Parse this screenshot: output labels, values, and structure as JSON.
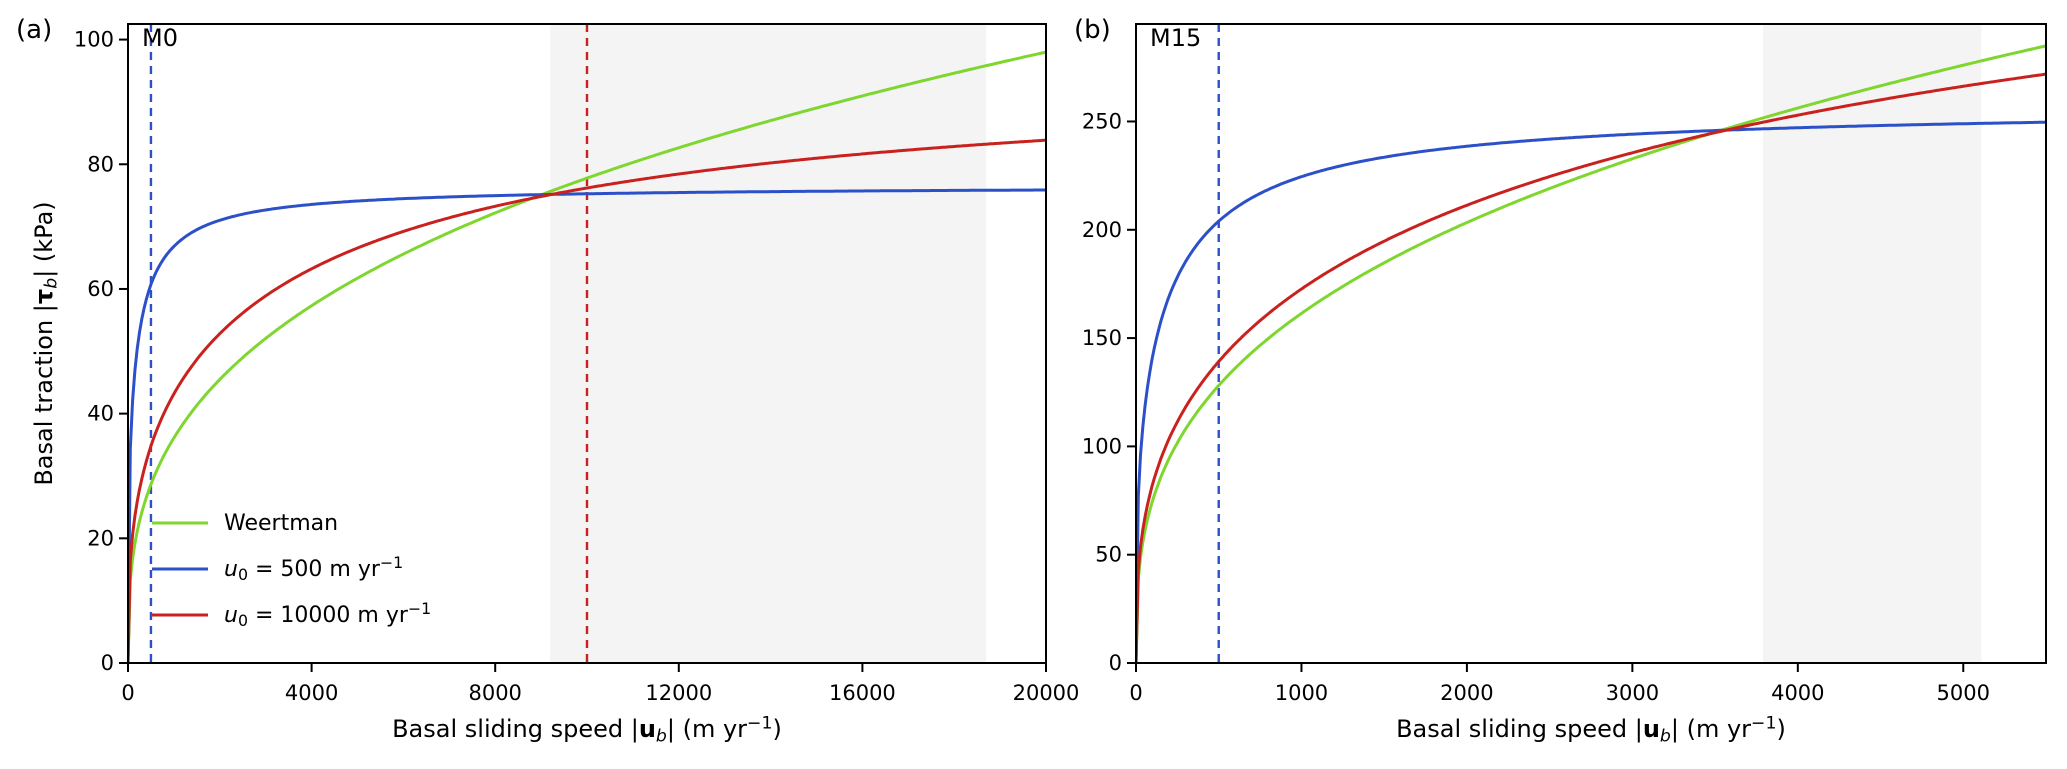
{
  "figure": {
    "background": "#ffffff",
    "description_labels": {
      "panel_a_letter": "(a)",
      "panel_a_tag": "M0",
      "panel_b_letter": "(b)",
      "panel_b_tag": "M15"
    }
  },
  "chart_data": [
    {
      "id": "a",
      "type": "line",
      "panel_letter": "(a)",
      "panel_tag": "M0",
      "xlabel": "Basal sliding speed |ub| (m yr−1)",
      "ylabel": "Basal traction |τb| (kPa)",
      "xlim": [
        0,
        20000
      ],
      "ylim": [
        0,
        102.5
      ],
      "xticks": [
        0,
        4000,
        8000,
        12000,
        16000,
        20000
      ],
      "yticks": [
        0,
        20,
        40,
        60,
        80,
        100
      ],
      "grid": false,
      "shaded_span": [
        9200,
        18700
      ],
      "shaded_color": "#f4f4f4",
      "vlines": [
        {
          "x": 500,
          "color": "#2c50c8",
          "style": "dashed"
        },
        {
          "x": 10000,
          "color": "#c9211e",
          "style": "dashed"
        }
      ],
      "xlabel_segments": [
        {
          "t": "Basal sliding speed |"
        },
        {
          "t": "u",
          "style": "bold"
        },
        {
          "t": "b",
          "style": "italic",
          "script": "sub"
        },
        {
          "t": "| (m yr"
        },
        {
          "t": "−1",
          "script": "sup"
        },
        {
          "t": ")"
        }
      ],
      "ylabel_segments": [
        {
          "t": "Basal traction |"
        },
        {
          "t": "τ",
          "style": "bold"
        },
        {
          "t": "b",
          "style": "italic",
          "script": "sub"
        },
        {
          "t": "| (kPa)"
        }
      ],
      "series": [
        {
          "key": "weertman",
          "name": "Weertman",
          "color": "#7ed62f",
          "law": "weertman",
          "C": 3.61,
          "m": 3,
          "points": [
            [
              0,
              0
            ],
            [
              500,
              28.7
            ],
            [
              1000,
              36.1
            ],
            [
              2000,
              45.5
            ],
            [
              4000,
              57.3
            ],
            [
              6000,
              65.6
            ],
            [
              8000,
              72.2
            ],
            [
              10000,
              77.8
            ],
            [
              12000,
              82.6
            ],
            [
              14000,
              87.0
            ],
            [
              16000,
              91.0
            ],
            [
              18000,
              94.6
            ],
            [
              20000,
              98.0
            ]
          ]
        },
        {
          "key": "u0-500",
          "name": "u0 =  500 m yr−1",
          "color": "#2c50c8",
          "law": "regularized-coulomb",
          "tau_c": 76.5,
          "u0": 500,
          "m": 3,
          "points": [
            [
              0,
              0
            ],
            [
              100,
              42.1
            ],
            [
              250,
              53.0
            ],
            [
              500,
              60.7
            ],
            [
              1000,
              66.8
            ],
            [
              2000,
              71.0
            ],
            [
              4000,
              73.6
            ],
            [
              8000,
              75.0
            ],
            [
              12000,
              75.5
            ],
            [
              16000,
              75.7
            ],
            [
              20000,
              75.9
            ]
          ]
        },
        {
          "key": "u0-10000",
          "name": "u0 =  10000 m yr−1",
          "color": "#c9211e",
          "law": "regularized-coulomb",
          "tau_c": 96.0,
          "u0": 10000,
          "m": 3,
          "points": [
            [
              0,
              0
            ],
            [
              500,
              34.8
            ],
            [
              1000,
              43.2
            ],
            [
              2000,
              52.8
            ],
            [
              4000,
              63.2
            ],
            [
              6000,
              69.2
            ],
            [
              8000,
              73.3
            ],
            [
              10000,
              76.2
            ],
            [
              12000,
              78.4
            ],
            [
              14000,
              80.2
            ],
            [
              16000,
              81.7
            ],
            [
              18000,
              82.9
            ],
            [
              20000,
              83.9
            ]
          ]
        }
      ],
      "legend": {
        "visible": true,
        "position": "lower left",
        "frame": false,
        "entries": [
          {
            "color": "#7ed62f",
            "label": "Weertman",
            "segments": [
              {
                "t": "Weertman"
              }
            ]
          },
          {
            "color": "#2c50c8",
            "label": "u0 =  500 m yr−1",
            "segments": [
              {
                "t": "u",
                "style": "italic"
              },
              {
                "t": "0",
                "script": "sub"
              },
              {
                "t": " =  500 m yr"
              },
              {
                "t": "−1",
                "script": "sup"
              }
            ]
          },
          {
            "color": "#c9211e",
            "label": "u0 =  10000 m yr−1",
            "segments": [
              {
                "t": "u",
                "style": "italic"
              },
              {
                "t": "0",
                "script": "sub"
              },
              {
                "t": " =  10000 m yr"
              },
              {
                "t": "−1",
                "script": "sup"
              }
            ]
          }
        ]
      }
    },
    {
      "id": "b",
      "type": "line",
      "panel_letter": "(b)",
      "panel_tag": "M15",
      "xlabel": "Basal sliding speed |ub| (m yr−1)",
      "ylabel": "",
      "xlim": [
        0,
        5500
      ],
      "ylim": [
        0,
        295
      ],
      "xticks": [
        0,
        1000,
        2000,
        3000,
        4000,
        5000
      ],
      "yticks": [
        0,
        50,
        100,
        150,
        200,
        250
      ],
      "grid": false,
      "shaded_span": [
        3790,
        5110
      ],
      "shaded_color": "#f4f4f4",
      "vlines": [
        {
          "x": 500,
          "color": "#2c50c8",
          "style": "dashed"
        }
      ],
      "xlabel_segments": [
        {
          "t": "Basal sliding speed |"
        },
        {
          "t": "u",
          "style": "bold"
        },
        {
          "t": "b",
          "style": "italic",
          "script": "sub"
        },
        {
          "t": "| (m yr"
        },
        {
          "t": "−1",
          "script": "sup"
        },
        {
          "t": ")"
        }
      ],
      "ylabel_segments": null,
      "series": [
        {
          "key": "weertman",
          "name": "Weertman",
          "color": "#7ed62f",
          "law": "weertman",
          "C": 16.14,
          "m": 3,
          "points": [
            [
              0,
              0
            ],
            [
              500,
              128
            ],
            [
              1000,
              161
            ],
            [
              1500,
              185
            ],
            [
              2000,
              203
            ],
            [
              2500,
              219
            ],
            [
              3000,
              233
            ],
            [
              3500,
              245
            ],
            [
              4000,
              256
            ],
            [
              4500,
              266
            ],
            [
              5000,
              276
            ],
            [
              5500,
              285
            ]
          ]
        },
        {
          "key": "u0-500",
          "name": "u0 =  500 m yr−1",
          "color": "#2c50c8",
          "law": "regularized-coulomb",
          "tau_c": 257,
          "u0": 500,
          "m": 3,
          "points": [
            [
              0,
              0
            ],
            [
              100,
              141
            ],
            [
              250,
              178
            ],
            [
              500,
              204
            ],
            [
              1000,
              225
            ],
            [
              1500,
              234
            ],
            [
              2000,
              239
            ],
            [
              3000,
              244
            ],
            [
              4000,
              247
            ],
            [
              5000,
              249
            ],
            [
              5500,
              250
            ]
          ]
        },
        {
          "key": "u0-10000",
          "name": "u0 =  10000 m yr−1",
          "color": "#c9211e",
          "law": "regularized-coulomb",
          "tau_c": 384,
          "u0": 10000,
          "m": 3,
          "points": [
            [
              0,
              0
            ],
            [
              500,
              139
            ],
            [
              1000,
              173
            ],
            [
              2000,
              211
            ],
            [
              3000,
              236
            ],
            [
              4000,
              253
            ],
            [
              5000,
              266
            ],
            [
              5500,
              272
            ]
          ]
        }
      ],
      "legend": {
        "visible": false,
        "entries": []
      }
    }
  ]
}
